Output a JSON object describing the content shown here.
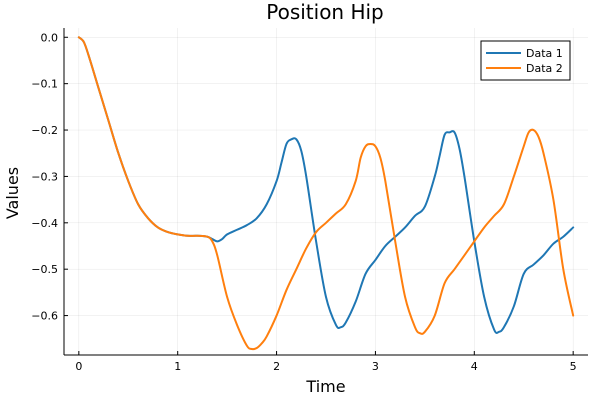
{
  "chart_data": {
    "type": "line",
    "title": "Position Hip",
    "xlabel": "Time",
    "ylabel": "Values",
    "xlim": [
      -0.15,
      5.15
    ],
    "ylim": [
      -0.685,
      0.02
    ],
    "xticks": [
      0,
      1,
      2,
      3,
      4,
      5
    ],
    "xtick_labels": [
      "0",
      "1",
      "2",
      "3",
      "4",
      "5"
    ],
    "yticks": [
      0.0,
      -0.1,
      -0.2,
      -0.3,
      -0.4,
      -0.5,
      -0.6
    ],
    "ytick_labels": [
      "0.0",
      "−0.1",
      "−0.2",
      "−0.3",
      "−0.4",
      "−0.5",
      "−0.6"
    ],
    "grid": true,
    "legend_position": "top-right",
    "series": [
      {
        "name": "Data 1",
        "color": "#1f77b4",
        "x": [
          0,
          0.05,
          0.1,
          0.2,
          0.3,
          0.4,
          0.5,
          0.6,
          0.7,
          0.8,
          0.9,
          1.0,
          1.1,
          1.2,
          1.3,
          1.35,
          1.4,
          1.45,
          1.5,
          1.6,
          1.7,
          1.8,
          1.9,
          2.0,
          2.05,
          2.1,
          2.15,
          2.2,
          2.25,
          2.3,
          2.4,
          2.5,
          2.6,
          2.65,
          2.7,
          2.8,
          2.9,
          3.0,
          3.1,
          3.2,
          3.3,
          3.4,
          3.5,
          3.6,
          3.65,
          3.7,
          3.75,
          3.8,
          3.85,
          3.9,
          4.0,
          4.1,
          4.2,
          4.25,
          4.3,
          4.4,
          4.5,
          4.6,
          4.7,
          4.8,
          4.9,
          5.0
        ],
        "y": [
          0.0,
          -0.01,
          -0.04,
          -0.11,
          -0.18,
          -0.25,
          -0.31,
          -0.36,
          -0.39,
          -0.41,
          -0.42,
          -0.425,
          -0.428,
          -0.428,
          -0.43,
          -0.435,
          -0.44,
          -0.435,
          -0.425,
          -0.415,
          -0.405,
          -0.39,
          -0.36,
          -0.31,
          -0.27,
          -0.23,
          -0.22,
          -0.22,
          -0.245,
          -0.3,
          -0.44,
          -0.56,
          -0.62,
          -0.625,
          -0.615,
          -0.57,
          -0.51,
          -0.48,
          -0.45,
          -0.43,
          -0.41,
          -0.385,
          -0.365,
          -0.3,
          -0.255,
          -0.21,
          -0.205,
          -0.205,
          -0.24,
          -0.3,
          -0.44,
          -0.56,
          -0.63,
          -0.635,
          -0.625,
          -0.58,
          -0.51,
          -0.49,
          -0.47,
          -0.445,
          -0.43,
          -0.41
        ]
      },
      {
        "name": "Data 2",
        "color": "#ff7f0e",
        "x": [
          0,
          0.05,
          0.1,
          0.2,
          0.3,
          0.4,
          0.5,
          0.6,
          0.7,
          0.8,
          0.9,
          1.0,
          1.1,
          1.2,
          1.3,
          1.35,
          1.4,
          1.5,
          1.6,
          1.7,
          1.75,
          1.8,
          1.85,
          1.9,
          2.0,
          2.1,
          2.2,
          2.3,
          2.4,
          2.5,
          2.6,
          2.7,
          2.8,
          2.85,
          2.9,
          2.95,
          3.0,
          3.05,
          3.1,
          3.2,
          3.3,
          3.4,
          3.45,
          3.5,
          3.6,
          3.7,
          3.8,
          3.9,
          4.0,
          4.1,
          4.2,
          4.3,
          4.4,
          4.5,
          4.55,
          4.6,
          4.65,
          4.7,
          4.8,
          4.9,
          5.0
        ],
        "y": [
          0.0,
          -0.01,
          -0.04,
          -0.11,
          -0.18,
          -0.25,
          -0.31,
          -0.36,
          -0.39,
          -0.41,
          -0.42,
          -0.425,
          -0.428,
          -0.428,
          -0.43,
          -0.44,
          -0.47,
          -0.56,
          -0.62,
          -0.665,
          -0.672,
          -0.67,
          -0.66,
          -0.645,
          -0.6,
          -0.545,
          -0.5,
          -0.455,
          -0.42,
          -0.4,
          -0.38,
          -0.36,
          -0.31,
          -0.26,
          -0.235,
          -0.23,
          -0.235,
          -0.26,
          -0.31,
          -0.44,
          -0.56,
          -0.625,
          -0.638,
          -0.635,
          -0.6,
          -0.53,
          -0.5,
          -0.47,
          -0.44,
          -0.41,
          -0.385,
          -0.36,
          -0.3,
          -0.235,
          -0.205,
          -0.2,
          -0.215,
          -0.25,
          -0.35,
          -0.5,
          -0.6
        ]
      }
    ]
  }
}
